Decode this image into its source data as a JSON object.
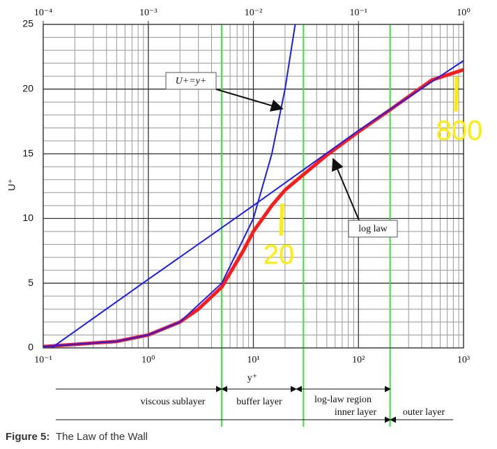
{
  "chart_data": {
    "type": "line",
    "xlabel": "y⁺",
    "ylabel": "U⁺",
    "xscale": "log",
    "xlim": [
      0.1,
      1000
    ],
    "xticks": [
      {
        "value": 0.1,
        "label": "10⁻¹"
      },
      {
        "value": 1,
        "label": "10⁰"
      },
      {
        "value": 10,
        "label": "10¹"
      },
      {
        "value": 100,
        "label": "10²"
      },
      {
        "value": 1000,
        "label": "10³"
      }
    ],
    "xminorticks": [
      0.2,
      0.3,
      0.4,
      0.5,
      0.6,
      0.7,
      0.8,
      0.9,
      2,
      3,
      4,
      5,
      6,
      7,
      8,
      9,
      20,
      30,
      40,
      50,
      60,
      70,
      80,
      90,
      200,
      300,
      400,
      500,
      600,
      700,
      800,
      900
    ],
    "x2lim": [
      0.0001,
      1
    ],
    "x2ticks": [
      {
        "value": 0.0001,
        "label": "10⁻⁴"
      },
      {
        "value": 0.001,
        "label": "10⁻³"
      },
      {
        "value": 0.01,
        "label": "10⁻²"
      },
      {
        "value": 0.1,
        "label": "10⁻¹"
      },
      {
        "value": 1,
        "label": "10⁰"
      }
    ],
    "ylim": [
      0,
      25
    ],
    "yticks": [
      0,
      5,
      10,
      15,
      20,
      25
    ],
    "yminorticks": [
      1,
      2,
      3,
      4,
      6,
      7,
      8,
      9,
      11,
      12,
      13,
      14,
      16,
      17,
      18,
      19,
      21,
      22,
      23,
      24
    ],
    "grid": true,
    "series": [
      {
        "name": "U+=y+",
        "color": "#1a1aff",
        "width": 2,
        "x": [
          0.1,
          0.5,
          1,
          2,
          5,
          10,
          15,
          20,
          25
        ],
        "values": [
          0.1,
          0.5,
          1,
          2,
          5,
          10,
          15,
          20,
          25
        ]
      },
      {
        "name": "log law",
        "color": "#1a1aff",
        "width": 2,
        "x": [
          0.12,
          1,
          10,
          100,
          1000
        ],
        "values": [
          0,
          5.3,
          11,
          16.8,
          22.2
        ]
      },
      {
        "color": "#ff1a1a",
        "width": 5,
        "x": [
          0.1,
          0.5,
          1,
          2,
          3,
          5,
          8,
          10,
          15,
          20,
          30,
          50,
          100,
          200,
          500,
          1000
        ],
        "values": [
          0.1,
          0.5,
          1,
          2,
          3,
          4.7,
          7.5,
          9,
          11,
          12.2,
          13.4,
          14.9,
          16.7,
          18.4,
          20.7,
          21.5
        ]
      }
    ],
    "vlines": [
      5,
      30,
      200
    ],
    "vline_color": "#33e633",
    "annotations": [
      "20",
      "800"
    ],
    "regions": [
      "viscous sublayer",
      "buffer layer",
      "log-law region",
      "inner layer",
      "outer layer"
    ]
  },
  "caption": {
    "label": "Figure 5:",
    "text": "The Law of the Wall"
  }
}
